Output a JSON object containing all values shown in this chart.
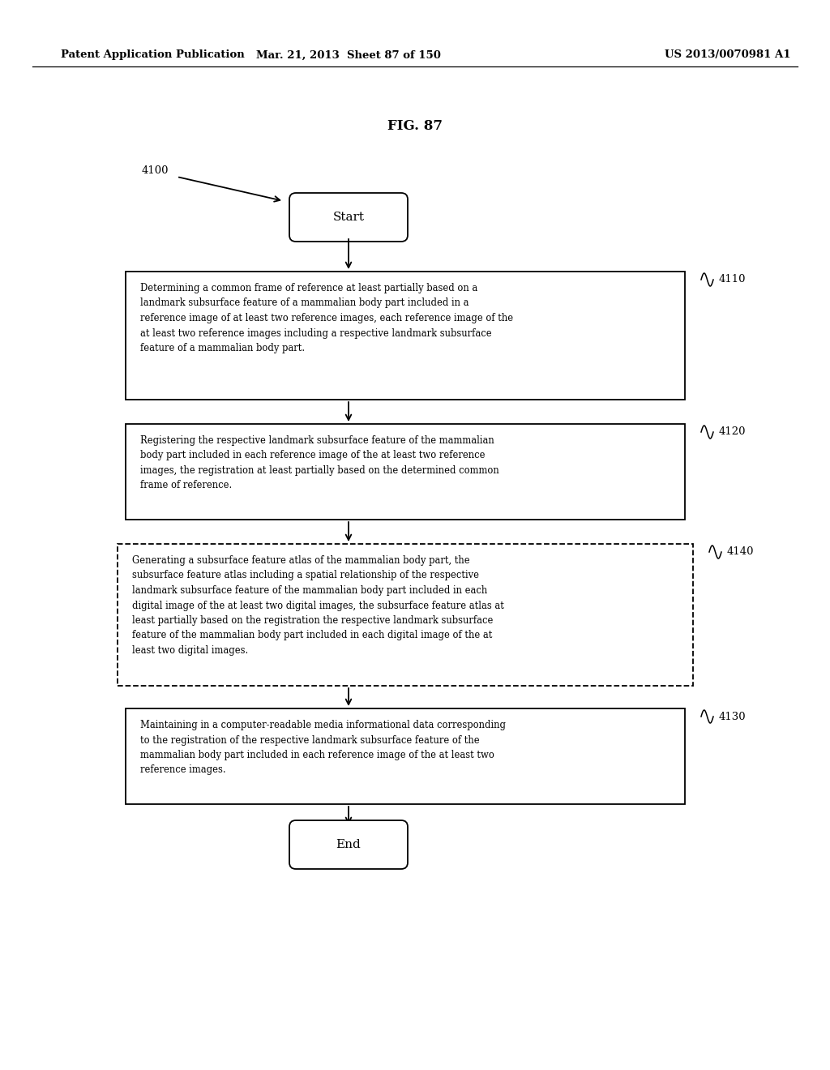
{
  "bg_color": "#ffffff",
  "header_left": "Patent Application Publication",
  "header_mid": "Mar. 21, 2013  Sheet 87 of 150",
  "header_right": "US 2013/0070981 A1",
  "fig_title": "FIG. 87",
  "label_4100": "4100",
  "label_start": "Start",
  "label_end": "End",
  "box_texts": [
    "Determining a common frame of reference at least partially based on a\nlandmark subsurface feature of a mammalian body part included in a\nreference image of at least two reference images, each reference image of the\nat least two reference images including a respective landmark subsurface\nfeature of a mammalian body part.",
    "Registering the respective landmark subsurface feature of the mammalian\nbody part included in each reference image of the at least two reference\nimages, the registration at least partially based on the determined common\nframe of reference.",
    "Generating a subsurface feature atlas of the mammalian body part, the\nsubsurface feature atlas including a spatial relationship of the respective\nlandmark subsurface feature of the mammalian body part included in each\ndigital image of the at least two digital images, the subsurface feature atlas at\nleast partially based on the registration the respective landmark subsurface\nfeature of the mammalian body part included in each digital image of the at\nleast two digital images.",
    "Maintaining in a computer-readable media informational data corresponding\nto the registration of the respective landmark subsurface feature of the\nmammalian body part included in each reference image of the at least two\nreference images."
  ],
  "box_labels": [
    "4110",
    "4120",
    "4140",
    "4130"
  ],
  "box_dashed": [
    false,
    false,
    true,
    false
  ]
}
